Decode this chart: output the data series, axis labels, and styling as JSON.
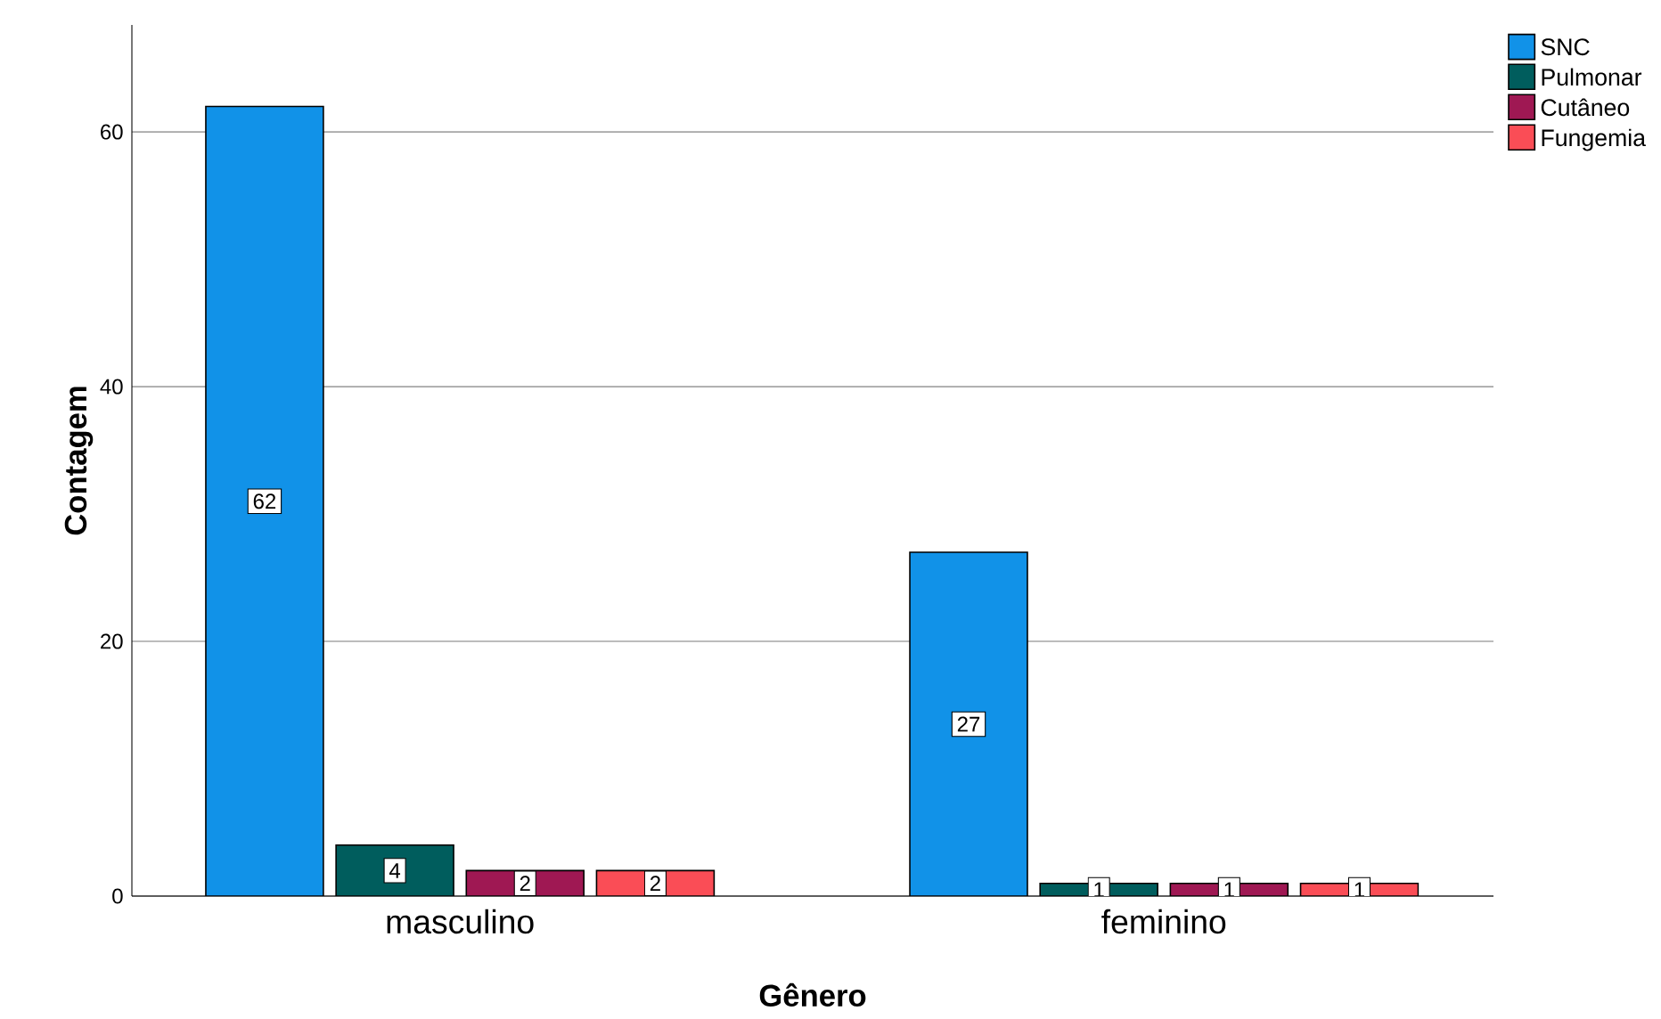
{
  "chart_data": {
    "type": "bar",
    "xlabel": "Gênero",
    "ylabel": "Contagem",
    "categories": [
      "masculino",
      "feminino"
    ],
    "series": [
      {
        "name": "SNC",
        "color": "#1192e8",
        "values": [
          62,
          27
        ]
      },
      {
        "name": "Pulmonar",
        "color": "#005d5d",
        "values": [
          4,
          1
        ]
      },
      {
        "name": "Cutâneo",
        "color": "#9f1853",
        "values": [
          2,
          1
        ]
      },
      {
        "name": "Fungemia",
        "color": "#fa4d56",
        "values": [
          2,
          1
        ]
      }
    ],
    "ylim": [
      0,
      68.4
    ],
    "yticks": [
      0,
      20,
      40,
      60
    ],
    "grid": "y",
    "legend": "top right",
    "data_labels": true
  }
}
